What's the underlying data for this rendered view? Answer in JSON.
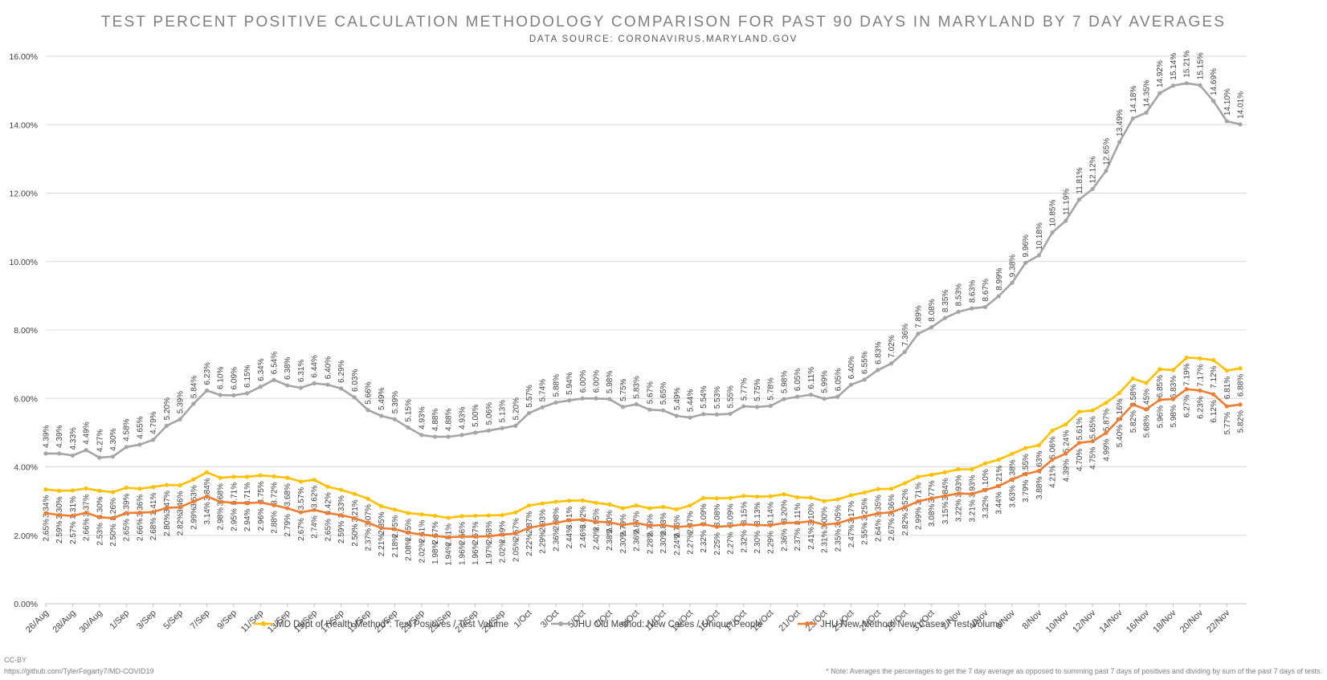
{
  "chart_data": {
    "type": "line",
    "title": "TEST PERCENT POSITIVE CALCULATION METHODOLOGY COMPARISON FOR PAST 90 DAYS IN MARYLAND BY 7 DAY AVERAGES",
    "subtitle": "DATA SOURCE: CORONAVIRUS.MARYLAND.GOV",
    "xlabel": "",
    "ylabel": "",
    "ylim": [
      0,
      16
    ],
    "yticks": [
      "0.00%",
      "2.00%",
      "4.00%",
      "6.00%",
      "8.00%",
      "10.00%",
      "12.00%",
      "14.00%",
      "16.00%"
    ],
    "grid": true,
    "legend_position": "bottom",
    "x_tick_labels": [
      "26/Aug",
      "28/Aug",
      "30/Aug",
      "1/Sep",
      "3/Sep",
      "5/Sep",
      "7/Sep",
      "9/Sep",
      "11/Sep",
      "13/Sep",
      "15/Sep",
      "17/Sep",
      "19/Sep",
      "21/Sep",
      "23/Sep",
      "25/Sep",
      "27/Sep",
      "29/Sep",
      "1/Oct",
      "3/Oct",
      "5/Oct",
      "7/Oct",
      "9/Oct",
      "11/Oct",
      "13/Oct",
      "15/Oct",
      "17/Oct",
      "19/Oct",
      "21/Oct",
      "23/Oct",
      "25/Oct",
      "27/Oct",
      "29/Oct",
      "31/Oct",
      "2/Nov",
      "4/Nov",
      "6/Nov",
      "8/Nov",
      "10/Nov",
      "12/Nov",
      "14/Nov",
      "16/Nov",
      "18/Nov",
      "20/Nov",
      "22/Nov"
    ],
    "series": [
      {
        "name": "MD Dept of Health Method*: Test Positives / Test Volume",
        "color": "#ffc000",
        "values": [
          3.34,
          3.3,
          3.31,
          3.37,
          3.3,
          3.26,
          3.39,
          3.36,
          3.41,
          3.47,
          3.46,
          3.63,
          3.84,
          3.68,
          3.71,
          3.71,
          3.75,
          3.72,
          3.68,
          3.57,
          3.62,
          3.42,
          3.33,
          3.21,
          3.07,
          2.85,
          2.75,
          2.65,
          2.61,
          2.57,
          2.51,
          2.56,
          2.57,
          2.58,
          2.59,
          2.67,
          2.87,
          2.93,
          2.98,
          3.01,
          3.02,
          2.95,
          2.9,
          2.79,
          2.87,
          2.79,
          2.83,
          2.76,
          2.87,
          3.09,
          3.08,
          3.09,
          3.15,
          3.13,
          3.14,
          3.2,
          3.11,
          3.1,
          3.0,
          3.05,
          3.17,
          3.25,
          3.35,
          3.36,
          3.52,
          3.71,
          3.77,
          3.84,
          3.93,
          3.93,
          4.1,
          4.21,
          4.38,
          4.55,
          4.63,
          5.06,
          5.24,
          5.61,
          5.65,
          5.87,
          6.16,
          6.58,
          6.45,
          6.85,
          6.83,
          7.19,
          7.17,
          7.12,
          6.81,
          6.88
        ],
        "labels": [
          "3.34%",
          "3.30%",
          "3.31%",
          "3.37%",
          "3.30%",
          "3.26%",
          "3.39%",
          "3.36%",
          "3.41%",
          "3.47%",
          "3.46%",
          "3.63%",
          "3.84%",
          "3.68%",
          "3.71%",
          "3.71%",
          "3.75%",
          "3.72%",
          "3.68%",
          "3.57%",
          "3.62%",
          "3.42%",
          "3.33%",
          "3.21%",
          "3.07%",
          "2.85%",
          "2.75%",
          "2.65%",
          "2.61%",
          "2.57%",
          "2.51%",
          "2.56%",
          "2.57%",
          "2.58%",
          "2.59%",
          "2.67%",
          "2.87%",
          "2.93%",
          "2.98%",
          "3.01%",
          "3.02%",
          "2.95%",
          "2.90%",
          "2.79%",
          "2.87%",
          "2.79%",
          "2.83%",
          "2.76%",
          "2.87%",
          "3.09%",
          "3.08%",
          "3.09%",
          "3.15%",
          "3.13%",
          "3.14%",
          "3.20%",
          "3.11%",
          "3.10%",
          "3.00%",
          "3.05%",
          "3.17%",
          "3.25%",
          "3.35%",
          "3.36%",
          "3.52%",
          "3.71%",
          "3.77%",
          "3.84%",
          "3.93%",
          "3.93%",
          "4.10%",
          "4.21%",
          "4.38%",
          "4.55%",
          "4.63%",
          "5.06%",
          "5.24%",
          "5.61%",
          "5.65%",
          "5.87%",
          "6.16%",
          "6.58%",
          "6.45%",
          "6.85%",
          "6.83%",
          "7.19%",
          "7.17%",
          "7.12%",
          "6.81%",
          "6.88%"
        ]
      },
      {
        "name": "JHU Old Method: New Cases / Unique People",
        "color": "#a5a5a5",
        "values": [
          4.39,
          4.39,
          4.33,
          4.49,
          4.27,
          4.3,
          4.58,
          4.65,
          4.79,
          5.2,
          5.39,
          5.84,
          6.23,
          6.1,
          6.09,
          6.15,
          6.34,
          6.54,
          6.38,
          6.31,
          6.44,
          6.4,
          6.29,
          6.03,
          5.66,
          5.49,
          5.39,
          5.15,
          4.93,
          4.88,
          4.88,
          4.93,
          5.0,
          5.06,
          5.13,
          5.2,
          5.57,
          5.74,
          5.88,
          5.94,
          6.0,
          6.0,
          5.98,
          5.75,
          5.83,
          5.67,
          5.65,
          5.49,
          5.44,
          5.54,
          5.53,
          5.55,
          5.77,
          5.75,
          5.78,
          5.98,
          6.05,
          6.11,
          5.99,
          6.05,
          6.4,
          6.55,
          6.83,
          7.02,
          7.36,
          7.89,
          8.08,
          8.35,
          8.53,
          8.63,
          8.67,
          8.99,
          9.38,
          9.96,
          10.18,
          10.85,
          11.19,
          11.81,
          12.12,
          12.65,
          13.49,
          14.18,
          14.35,
          14.92,
          15.14,
          15.21,
          15.15,
          14.69,
          14.1,
          14.01
        ],
        "labels": [
          "4.39%",
          "4.39%",
          "4.33%",
          "4.49%",
          "4.27%",
          "4.30%",
          "4.58%",
          "4.65%",
          "4.79%",
          "5.20%",
          "5.39%",
          "5.84%",
          "6.23%",
          "6.10%",
          "6.09%",
          "6.15%",
          "6.34%",
          "6.54%",
          "6.38%",
          "6.31%",
          "6.44%",
          "6.40%",
          "6.29%",
          "6.03%",
          "5.66%",
          "5.49%",
          "5.39%",
          "5.15%",
          "4.93%",
          "4.88%",
          "4.88%",
          "4.93%",
          "5.00%",
          "5.06%",
          "5.13%",
          "5.20%",
          "5.57%",
          "5.74%",
          "5.88%",
          "5.94%",
          "6.00%",
          "6.00%",
          "5.98%",
          "5.75%",
          "5.83%",
          "5.67%",
          "5.65%",
          "5.49%",
          "5.44%",
          "5.54%",
          "5.53%",
          "5.55%",
          "5.77%",
          "5.75%",
          "5.78%",
          "5.98%",
          "6.05%",
          "6.11%",
          "5.99%",
          "6.05%",
          "6.40%",
          "6.55%",
          "6.83%",
          "7.02%",
          "7.36%",
          "7.89%",
          "8.08%",
          "8.35%",
          "8.53%",
          "8.63%",
          "8.67%",
          "8.99%",
          "9.38%",
          "9.96%",
          "10.18%",
          "10.85%",
          "11.19%",
          "11.81%",
          "12.12%",
          "12.65%",
          "13.49%",
          "14.18%",
          "14.35%",
          "14.92%",
          "15.14%",
          "15.21%",
          "15.15%",
          "14.69%",
          "14.10%",
          "14.01%"
        ]
      },
      {
        "name": "JHU New Method: New Cases / Test Volume",
        "color": "#ed7d31",
        "values": [
          2.65,
          2.59,
          2.57,
          2.66,
          2.53,
          2.5,
          2.65,
          2.66,
          2.68,
          2.8,
          2.82,
          2.99,
          3.14,
          2.98,
          2.95,
          2.94,
          2.96,
          2.88,
          2.79,
          2.67,
          2.74,
          2.65,
          2.59,
          2.5,
          2.37,
          2.21,
          2.18,
          2.08,
          2.02,
          1.98,
          1.94,
          1.96,
          1.96,
          1.97,
          2.02,
          2.05,
          2.22,
          2.29,
          2.36,
          2.44,
          2.46,
          2.4,
          2.38,
          2.3,
          2.36,
          2.28,
          2.3,
          2.24,
          2.27,
          2.32,
          2.25,
          2.27,
          2.32,
          2.3,
          2.29,
          2.36,
          2.37,
          2.41,
          2.31,
          2.35,
          2.47,
          2.55,
          2.64,
          2.67,
          2.82,
          2.99,
          3.08,
          3.15,
          3.22,
          3.21,
          3.32,
          3.44,
          3.63,
          3.79,
          3.88,
          4.21,
          4.39,
          4.7,
          4.75,
          4.99,
          5.4,
          5.82,
          5.68,
          5.96,
          5.98,
          6.27,
          6.23,
          6.12,
          5.77,
          5.82
        ],
        "labels": [
          "2.65%",
          "2.59%",
          "2.57%",
          "2.66%",
          "2.53%",
          "2.50%",
          "2.65%",
          "2.66%",
          "2.68%",
          "2.80%",
          "2.82%",
          "2.99%",
          "3.14%",
          "2.98%",
          "2.95%",
          "2.94%",
          "2.96%",
          "2.88%",
          "2.79%",
          "2.67%",
          "2.74%",
          "2.65%",
          "2.59%",
          "2.50%",
          "2.37%",
          "2.21%",
          "2.18%",
          "2.08%",
          "2.02%",
          "1.98%",
          "1.94%",
          "1.96%",
          "1.96%",
          "1.97%",
          "2.02%",
          "2.05%",
          "2.22%",
          "2.29%",
          "2.36%",
          "2.44%",
          "2.46%",
          "2.40%",
          "2.38%",
          "2.30%",
          "2.36%",
          "2.28%",
          "2.30%",
          "2.24%",
          "2.27%",
          "2.32%",
          "2.25%",
          "2.27%",
          "2.32%",
          "2.30%",
          "2.29%",
          "2.36%",
          "2.37%",
          "2.41%",
          "2.31%",
          "2.35%",
          "2.47%",
          "2.55%",
          "2.64%",
          "2.67%",
          "2.82%",
          "2.99%",
          "3.08%",
          "3.15%",
          "3.22%",
          "3.21%",
          "3.32%",
          "3.44%",
          "3.63%",
          "3.79%",
          "3.88%",
          "4.21%",
          "4.39%",
          "4.70%",
          "4.75%",
          "4.99%",
          "5.40%",
          "5.82%",
          "5.68%",
          "5.96%",
          "5.98%",
          "6.27%",
          "6.23%",
          "6.12%",
          "5.77%",
          "5.82%"
        ]
      }
    ]
  },
  "footer": {
    "license": "CC-BY",
    "source_link": "https://github.com/TylerFogarty7/MD-COVID19",
    "note": "* Note: Averages the percentages to get the 7 day average as opposed to summing past 7 days of positives and dividing by sum of the past 7 days of tests."
  }
}
